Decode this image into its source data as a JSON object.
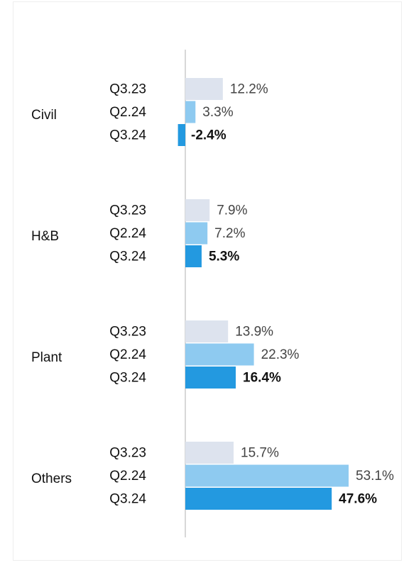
{
  "chart_data": {
    "type": "bar",
    "orientation": "horizontal",
    "categories": [
      "Civil",
      "H&B",
      "Plant",
      "Others"
    ],
    "series": [
      {
        "name": "Q3.23",
        "color": "#dde3ee",
        "values": [
          12.2,
          7.9,
          13.9,
          15.7
        ],
        "value_labels": [
          "12.2%",
          "7.9%",
          "13.9%",
          "15.7%"
        ]
      },
      {
        "name": "Q2.24",
        "color": "#8ecaf0",
        "values": [
          3.3,
          7.2,
          22.3,
          53.1
        ],
        "value_labels": [
          "3.3%",
          "7.2%",
          "22.3%",
          "53.1%"
        ]
      },
      {
        "name": "Q3.24",
        "color": "#2399e0",
        "values": [
          -2.4,
          5.3,
          16.4,
          47.6
        ],
        "value_labels": [
          "-2.4%",
          "5.3%",
          "16.4%",
          "47.6%"
        ]
      }
    ]
  }
}
